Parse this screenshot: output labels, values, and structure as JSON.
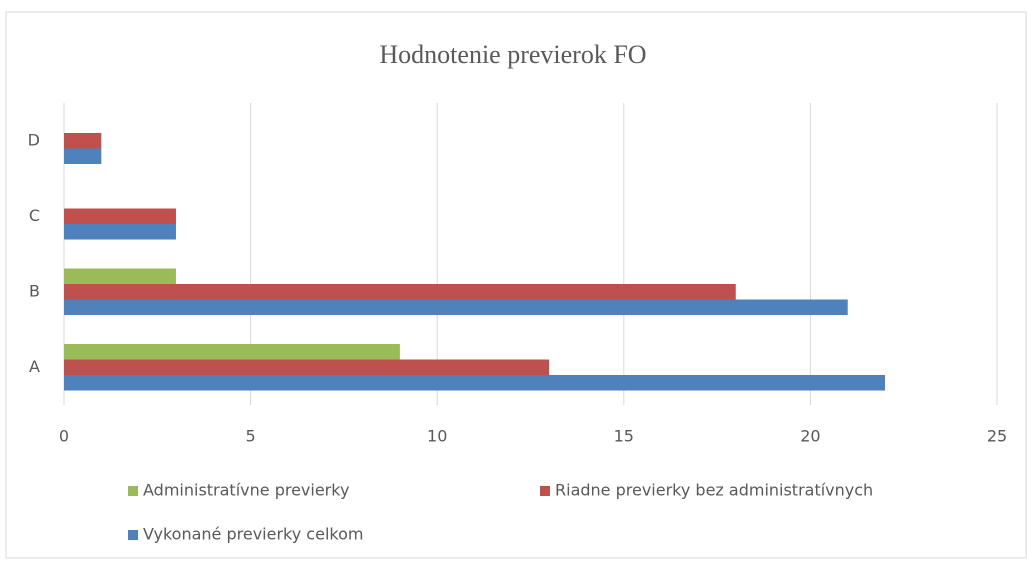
{
  "chart_data": {
    "type": "hbar",
    "title": "Hodnotenie previerok FO",
    "categories": [
      "A",
      "B",
      "C",
      "D"
    ],
    "series": [
      {
        "name": "Administratívne previerky",
        "color": "#9bbb59",
        "values": [
          9,
          3,
          0,
          0
        ]
      },
      {
        "name": "Riadne previerky bez administratívnych",
        "color": "#c0504d",
        "values": [
          13,
          18,
          3,
          1
        ]
      },
      {
        "name": "Vykonané previerky celkom",
        "color": "#4f81bd",
        "values": [
          22,
          21,
          3,
          1
        ]
      }
    ],
    "xlim": [
      0,
      25
    ],
    "xticks": [
      0,
      5,
      10,
      15,
      20,
      25
    ],
    "grid": true
  }
}
